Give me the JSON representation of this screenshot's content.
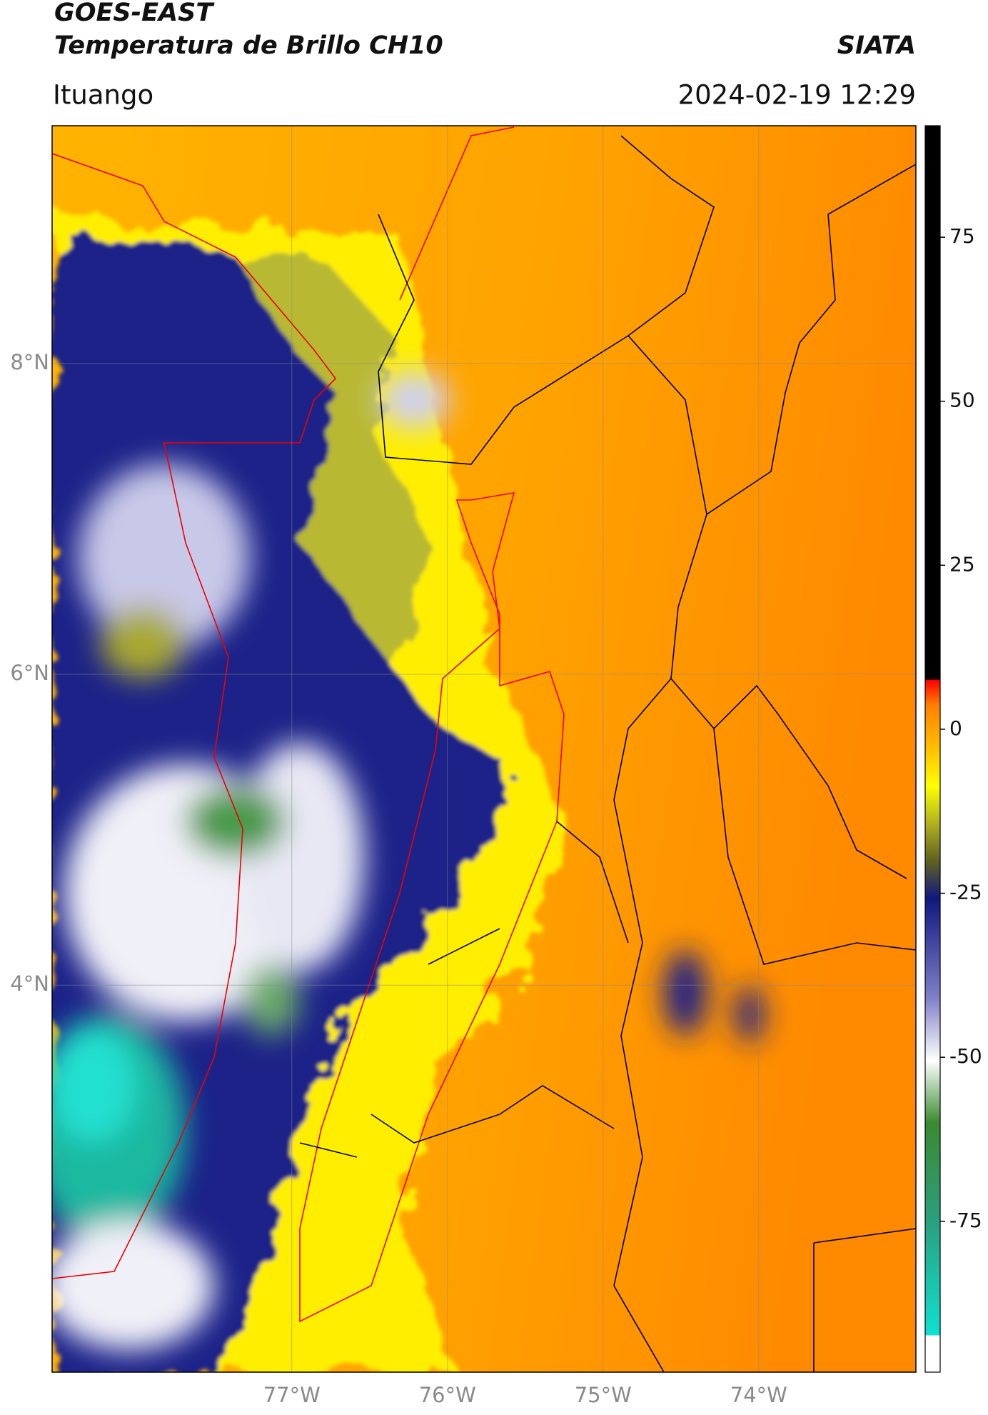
{
  "header": {
    "title": "GOES-EAST",
    "subtitle": "Temperatura de Brillo CH10",
    "source": "SIATA",
    "location": "Ituango",
    "datetime": "2024-02-19 12:29"
  },
  "map": {
    "xlim": [
      -78.54,
      -72.99
    ],
    "ylim": [
      1.51,
      9.53
    ],
    "xticks": [
      {
        "value": -77,
        "label": "77°W"
      },
      {
        "value": -76,
        "label": "76°W"
      },
      {
        "value": -75,
        "label": "75°W"
      },
      {
        "value": -74,
        "label": "74°W"
      }
    ],
    "yticks": [
      {
        "value": 8,
        "label": "8°N"
      },
      {
        "value": 6,
        "label": "6°N"
      },
      {
        "value": 4,
        "label": "4°N"
      }
    ],
    "grid": true
  },
  "colorbar": {
    "clim": [
      -98,
      92
    ],
    "ticks": [
      75,
      50,
      25,
      0,
      -25,
      -50,
      -75
    ]
  }
}
